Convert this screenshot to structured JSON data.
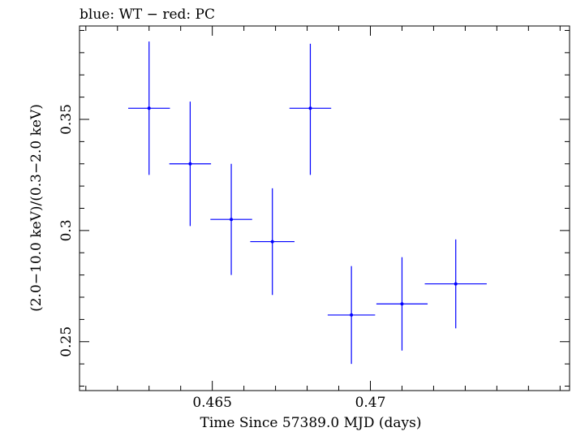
{
  "chart_data": {
    "type": "scatter",
    "title": "blue: WT − red: PC",
    "xlabel": "Time Since 57389.0 MJD (days)",
    "ylabel": "(2.0−10.0 keV)/(0.3−2.0 keV)",
    "xlim": [
      0.4608,
      0.4763
    ],
    "ylim": [
      0.228,
      0.392
    ],
    "xticks": [
      0.465,
      0.47
    ],
    "xtick_labels": [
      "0.465",
      "0.47"
    ],
    "yticks": [
      0.25,
      0.3,
      0.35
    ],
    "ytick_labels": [
      "0.25",
      "0.3",
      "0.35"
    ],
    "grid": false,
    "series": [
      {
        "color": "#0000ff",
        "points": [
          {
            "x": 0.463,
            "xerr": 0.00066,
            "y": 0.355,
            "yerr_low": 0.03,
            "yerr_high": 0.03
          },
          {
            "x": 0.4643,
            "xerr": 0.00066,
            "y": 0.33,
            "yerr_low": 0.028,
            "yerr_high": 0.028
          },
          {
            "x": 0.4656,
            "xerr": 0.00066,
            "y": 0.305,
            "yerr_low": 0.025,
            "yerr_high": 0.025
          },
          {
            "x": 0.4669,
            "xerr": 0.0007,
            "y": 0.295,
            "yerr_low": 0.024,
            "yerr_high": 0.024
          },
          {
            "x": 0.4681,
            "xerr": 0.00066,
            "y": 0.355,
            "yerr_low": 0.03,
            "yerr_high": 0.029
          },
          {
            "x": 0.4694,
            "xerr": 0.00075,
            "y": 0.262,
            "yerr_low": 0.022,
            "yerr_high": 0.022
          },
          {
            "x": 0.471,
            "xerr": 0.00081,
            "y": 0.267,
            "yerr_low": 0.021,
            "yerr_high": 0.021
          },
          {
            "x": 0.4727,
            "xerr": 0.00098,
            "y": 0.276,
            "yerr_low": 0.02,
            "yerr_high": 0.02
          }
        ]
      }
    ]
  }
}
